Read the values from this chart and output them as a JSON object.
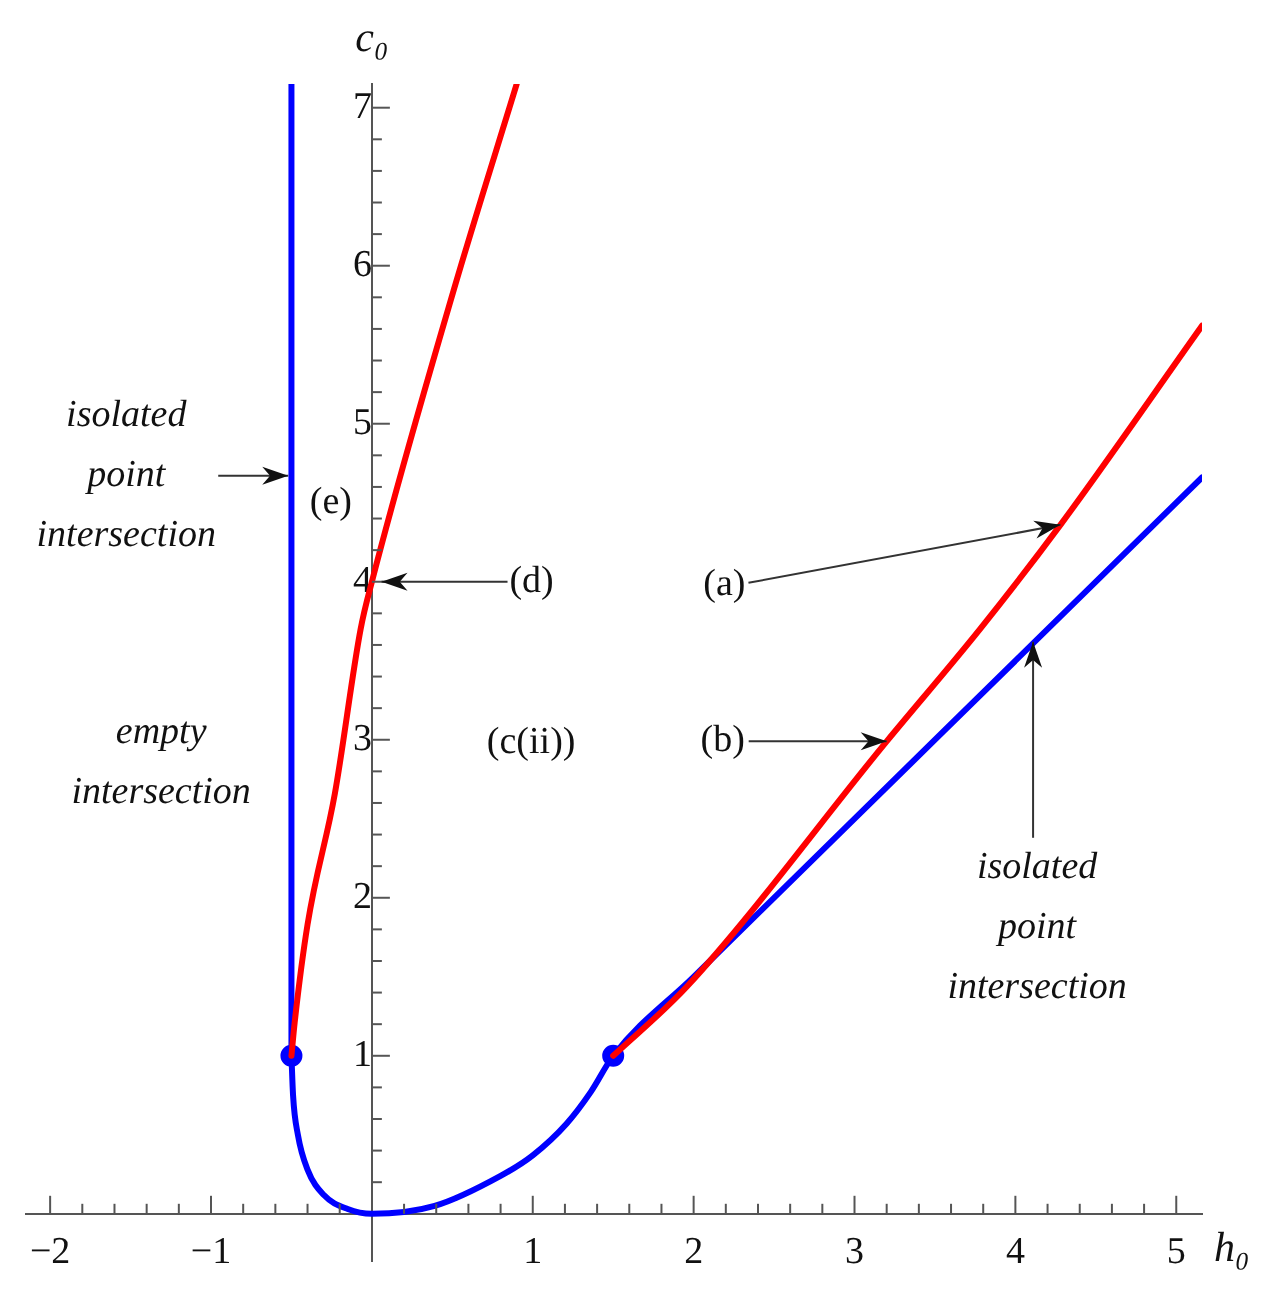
{
  "chart_data": {
    "type": "line",
    "xlabel": "h₀",
    "ylabel": "c₀",
    "xlim": [
      -2.15,
      5.16
    ],
    "ylim": [
      -0.3,
      7.15
    ],
    "xticks": [
      -2,
      {
        "value": -1.8,
        "label": null
      },
      {
        "value": -1.6,
        "label": null
      },
      {
        "value": -1.4,
        "label": null
      },
      {
        "value": -1.2,
        "label": null
      },
      -1,
      {
        "value": -0.8,
        "label": null
      },
      {
        "value": -0.6,
        "label": null
      },
      {
        "value": -0.4,
        "label": null
      },
      {
        "value": -0.2,
        "label": null
      },
      {
        "value": 0.2,
        "label": null
      },
      {
        "value": 0.4,
        "label": null
      },
      {
        "value": 0.6,
        "label": null
      },
      {
        "value": 0.8,
        "label": null
      },
      1,
      {
        "value": 1.2,
        "label": null
      },
      {
        "value": 1.4,
        "label": null
      },
      {
        "value": 1.6,
        "label": null
      },
      {
        "value": 1.8,
        "label": null
      },
      2,
      {
        "value": 2.2,
        "label": null
      },
      {
        "value": 2.4,
        "label": null
      },
      {
        "value": 2.6,
        "label": null
      },
      {
        "value": 2.8,
        "label": null
      },
      3,
      {
        "value": 3.2,
        "label": null
      },
      {
        "value": 3.4,
        "label": null
      },
      {
        "value": 3.6,
        "label": null
      },
      {
        "value": 3.8,
        "label": null
      },
      4,
      {
        "value": 4.2,
        "label": null
      },
      {
        "value": 4.4,
        "label": null
      },
      {
        "value": 4.6,
        "label": null
      },
      {
        "value": 4.8,
        "label": null
      },
      5
    ],
    "yticks": [
      {
        "value": 0.2,
        "label": null
      },
      {
        "value": 0.4,
        "label": null
      },
      {
        "value": 0.6,
        "label": null
      },
      {
        "value": 0.8,
        "label": null
      },
      1,
      {
        "value": 1.2,
        "label": null
      },
      {
        "value": 1.4,
        "label": null
      },
      {
        "value": 1.6,
        "label": null
      },
      {
        "value": 1.8,
        "label": null
      },
      2,
      {
        "value": 2.2,
        "label": null
      },
      {
        "value": 2.4,
        "label": null
      },
      {
        "value": 2.6,
        "label": null
      },
      {
        "value": 2.8,
        "label": null
      },
      3,
      {
        "value": 3.2,
        "label": null
      },
      {
        "value": 3.4,
        "label": null
      },
      {
        "value": 3.6,
        "label": null
      },
      {
        "value": 3.8,
        "label": null
      },
      4,
      {
        "value": 4.2,
        "label": null
      },
      {
        "value": 4.4,
        "label": null
      },
      {
        "value": 4.6,
        "label": null
      },
      {
        "value": 4.8,
        "label": null
      },
      5,
      {
        "value": 5.2,
        "label": null
      },
      {
        "value": 5.4,
        "label": null
      },
      {
        "value": 5.6,
        "label": null
      },
      {
        "value": 5.8,
        "label": null
      },
      6,
      {
        "value": 6.2,
        "label": null
      },
      {
        "value": 6.4,
        "label": null
      },
      {
        "value": 6.6,
        "label": null
      },
      {
        "value": 6.8,
        "label": null
      },
      7
    ],
    "grid": false,
    "legend": false,
    "series": [
      {
        "type": "line",
        "color": "#ff0000",
        "x": [
          -0.5,
          -0.48,
          -0.4,
          -0.23,
          -0.07,
          0,
          0.51,
          0.9
        ],
        "values": [
          1,
          1.21,
          1.83,
          2.66,
          3.7,
          4.0,
          5.85,
          7.15
        ]
      },
      {
        "type": "line",
        "color": "#ff0000",
        "x": [
          1.5,
          1.96,
          3.2,
          3.78,
          4.28,
          5.16
        ],
        "values": [
          1,
          1.44,
          2.99,
          3.7,
          4.36,
          5.62
        ]
      },
      {
        "type": "line",
        "color": "#0000ff",
        "x": [
          -0.5,
          -0.5
        ],
        "values": [
          1,
          7.15
        ]
      },
      {
        "type": "line",
        "color": "#0000ff",
        "x": [
          -0.5,
          -0.49,
          -0.46,
          -0.4,
          -0.3,
          -0.15,
          0,
          0.39,
          0.8,
          1.0,
          1.21,
          1.36,
          1.5,
          2,
          5.16
        ],
        "values": [
          1,
          0.75,
          0.5,
          0.28,
          0.12,
          0.03,
          0,
          0.05,
          0.24,
          0.37,
          0.57,
          0.77,
          1,
          1.5,
          4.66
        ]
      },
      {
        "type": "scatter",
        "color": "#0000ff",
        "marker": "circle",
        "x": [
          -0.5,
          1.5
        ],
        "values": [
          1,
          1
        ]
      }
    ],
    "annotations": [
      {
        "text": "isolated point intersection",
        "x": -0.52,
        "y": 4.67
      },
      {
        "text": "(d)",
        "x": 0.06,
        "y": 4.0
      },
      {
        "text": "(a)",
        "x": 4.28,
        "y": 4.36
      },
      {
        "text": "(b)",
        "x": 3.2,
        "y": 2.99
      },
      {
        "text": "isolated point intersection",
        "x": 4.11,
        "y": 3.62
      },
      "(e)",
      "empty intersection",
      "(c(ii))"
    ]
  }
}
